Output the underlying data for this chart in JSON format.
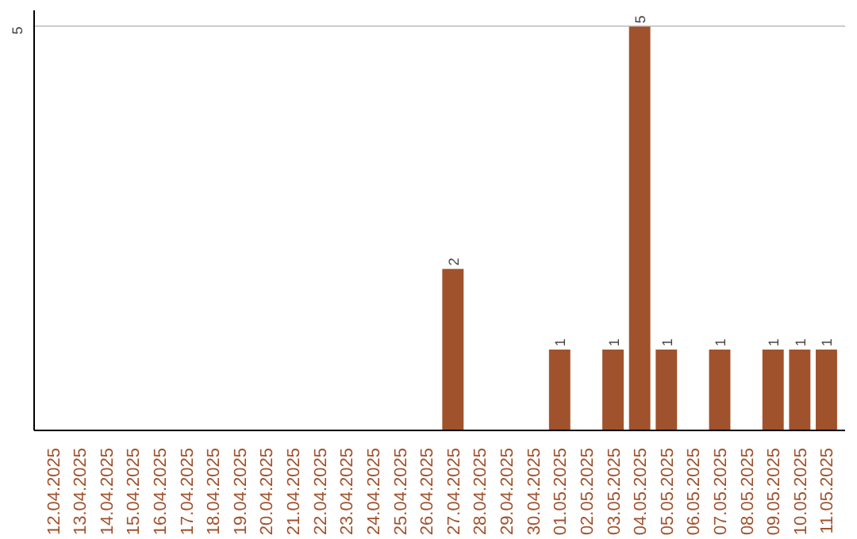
{
  "chart_data": {
    "type": "bar",
    "categories": [
      "12.04.2025",
      "13.04.2025",
      "14.04.2025",
      "15.04.2025",
      "16.04.2025",
      "17.04.2025",
      "18.04.2025",
      "19.04.2025",
      "20.04.2025",
      "21.04.2025",
      "22.04.2025",
      "23.04.2025",
      "24.04.2025",
      "25.04.2025",
      "26.04.2025",
      "27.04.2025",
      "28.04.2025",
      "29.04.2025",
      "30.04.2025",
      "01.05.2025",
      "02.05.2025",
      "03.05.2025",
      "04.05.2025",
      "05.05.2025",
      "06.05.2025",
      "07.05.2025",
      "08.05.2025",
      "09.05.2025",
      "10.05.2025",
      "11.05.2025"
    ],
    "values": [
      null,
      null,
      null,
      null,
      null,
      null,
      null,
      null,
      null,
      null,
      null,
      null,
      null,
      null,
      null,
      2,
      null,
      null,
      null,
      1,
      null,
      1,
      5,
      1,
      null,
      1,
      null,
      1,
      1,
      1
    ],
    "data_labels": true,
    "color": "#a0522d",
    "ylim": [
      0,
      5.2
    ],
    "yticks": [
      5
    ],
    "grid": "y"
  }
}
